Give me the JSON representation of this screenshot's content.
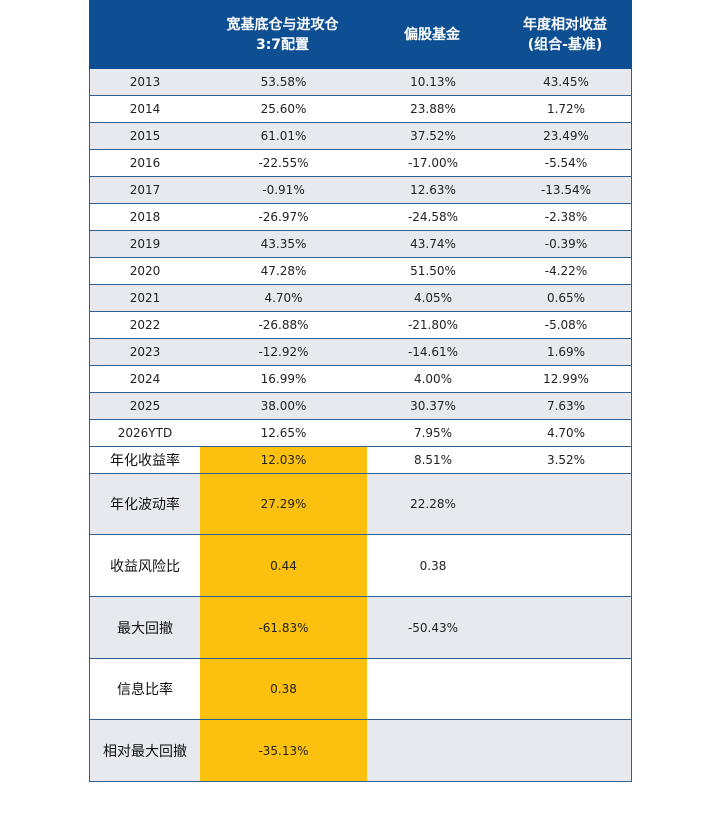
{
  "header": {
    "year": "",
    "portfolio": "宽基底仓与进攻仓\n3:7配置",
    "fund": "偏股基金",
    "relative": "年度相对收益\n(组合-基准)"
  },
  "annual_rows": [
    {
      "year": "2013",
      "portfolio": "53.58%",
      "fund": "10.13%",
      "relative": "43.45%"
    },
    {
      "year": "2014",
      "portfolio": "25.60%",
      "fund": "23.88%",
      "relative": "1.72%"
    },
    {
      "year": "2015",
      "portfolio": "61.01%",
      "fund": "37.52%",
      "relative": "23.49%"
    },
    {
      "year": "2016",
      "portfolio": "-22.55%",
      "fund": "-17.00%",
      "relative": "-5.54%"
    },
    {
      "year": "2017",
      "portfolio": "-0.91%",
      "fund": "12.63%",
      "relative": "-13.54%"
    },
    {
      "year": "2018",
      "portfolio": "-26.97%",
      "fund": "-24.58%",
      "relative": "-2.38%"
    },
    {
      "year": "2019",
      "portfolio": "43.35%",
      "fund": "43.74%",
      "relative": "-0.39%"
    },
    {
      "year": "2020",
      "portfolio": "47.28%",
      "fund": "51.50%",
      "relative": "-4.22%"
    },
    {
      "year": "2021",
      "portfolio": "4.70%",
      "fund": "4.05%",
      "relative": "0.65%"
    },
    {
      "year": "2022",
      "portfolio": "-26.88%",
      "fund": "-21.80%",
      "relative": "-5.08%"
    },
    {
      "year": "2023",
      "portfolio": "-12.92%",
      "fund": "-14.61%",
      "relative": "1.69%"
    },
    {
      "year": "2024",
      "portfolio": "16.99%",
      "fund": "4.00%",
      "relative": "12.99%"
    },
    {
      "year": "2025",
      "portfolio": "38.00%",
      "fund": "30.37%",
      "relative": "7.63%"
    },
    {
      "year": "2026YTD",
      "portfolio": "12.65%",
      "fund": "7.95%",
      "relative": "4.70%"
    }
  ],
  "summary_rows": [
    {
      "label": "年化收益率",
      "portfolio": "12.03%",
      "fund": "8.51%",
      "relative": "3.52%"
    },
    {
      "label": "年化波动率",
      "portfolio": "27.29%",
      "fund": "22.28%",
      "relative": ""
    },
    {
      "label": "收益风险比",
      "portfolio": "0.44",
      "fund": "0.38",
      "relative": ""
    },
    {
      "label": "最大回撤",
      "portfolio": "-61.83%",
      "fund": "-50.43%",
      "relative": ""
    },
    {
      "label": "信息比率",
      "portfolio": "0.38",
      "fund": "",
      "relative": ""
    },
    {
      "label": "相对最大回撤",
      "portfolio": "-35.13%",
      "fund": "",
      "relative": ""
    }
  ],
  "colors": {
    "header_bg": "#0e4f93",
    "alt_row_bg": "#e8e9ee",
    "highlight": "#fcc10f",
    "border": "#2f5f8f"
  }
}
